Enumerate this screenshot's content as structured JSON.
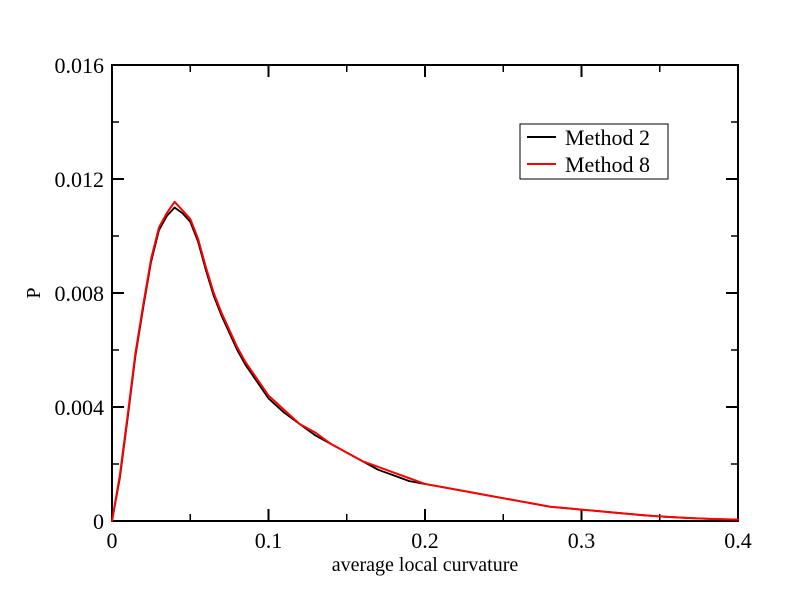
{
  "chart_data": {
    "type": "line",
    "title": "",
    "xlabel": "average local curvature",
    "ylabel": "P",
    "xlim": [
      0,
      0.4
    ],
    "ylim": [
      0,
      0.016
    ],
    "xticks": [
      0,
      0.1,
      0.2,
      0.3,
      0.4
    ],
    "xtick_labels": [
      "0",
      "0.1",
      "0.2",
      "0.3",
      "0.4"
    ],
    "yticks": [
      0,
      0.004,
      0.008,
      0.012,
      0.016
    ],
    "ytick_labels": [
      "0",
      "0.004",
      "0.008",
      "0.012",
      "0.016"
    ],
    "legend_position": "top-right",
    "grid": false,
    "series": [
      {
        "name": "Method 2",
        "color": "#000000",
        "x": [
          0.0,
          0.005,
          0.01,
          0.015,
          0.02,
          0.025,
          0.03,
          0.035,
          0.04,
          0.045,
          0.05,
          0.055,
          0.06,
          0.065,
          0.07,
          0.075,
          0.08,
          0.085,
          0.09,
          0.095,
          0.1,
          0.11,
          0.12,
          0.13,
          0.14,
          0.15,
          0.16,
          0.17,
          0.18,
          0.19,
          0.2,
          0.21,
          0.22,
          0.23,
          0.24,
          0.25,
          0.26,
          0.27,
          0.28,
          0.29,
          0.3,
          0.31,
          0.32,
          0.33,
          0.34,
          0.35,
          0.36,
          0.37,
          0.38,
          0.39,
          0.4
        ],
        "values": [
          0.0,
          0.0015,
          0.0036,
          0.0058,
          0.0075,
          0.0091,
          0.0102,
          0.0107,
          0.011,
          0.0108,
          0.0105,
          0.0098,
          0.0088,
          0.0079,
          0.0072,
          0.0066,
          0.006,
          0.0055,
          0.0051,
          0.0047,
          0.0043,
          0.0038,
          0.0034,
          0.003,
          0.0027,
          0.0024,
          0.0021,
          0.0018,
          0.0016,
          0.0014,
          0.0013,
          0.0012,
          0.0011,
          0.001,
          0.0009,
          0.0008,
          0.0007,
          0.0006,
          0.0005,
          0.00045,
          0.0004,
          0.00035,
          0.0003,
          0.00025,
          0.0002,
          0.00016,
          0.00013,
          0.0001,
          8e-05,
          6e-05,
          5e-05
        ]
      },
      {
        "name": "Method 8",
        "color": "#ff0000",
        "x": [
          0.0,
          0.005,
          0.01,
          0.015,
          0.02,
          0.025,
          0.03,
          0.035,
          0.04,
          0.045,
          0.05,
          0.055,
          0.06,
          0.065,
          0.07,
          0.075,
          0.08,
          0.085,
          0.09,
          0.095,
          0.1,
          0.11,
          0.12,
          0.13,
          0.14,
          0.15,
          0.16,
          0.17,
          0.18,
          0.19,
          0.2,
          0.21,
          0.22,
          0.23,
          0.24,
          0.25,
          0.26,
          0.27,
          0.28,
          0.29,
          0.3,
          0.31,
          0.32,
          0.33,
          0.34,
          0.35,
          0.36,
          0.37,
          0.38,
          0.39,
          0.4
        ],
        "values": [
          0.0,
          0.0016,
          0.0037,
          0.0059,
          0.0076,
          0.0092,
          0.0103,
          0.0108,
          0.0112,
          0.0109,
          0.0106,
          0.0099,
          0.0089,
          0.008,
          0.0073,
          0.0067,
          0.0061,
          0.0056,
          0.0052,
          0.0048,
          0.0044,
          0.0039,
          0.0034,
          0.0031,
          0.0027,
          0.0024,
          0.0021,
          0.0019,
          0.0017,
          0.0015,
          0.0013,
          0.0012,
          0.0011,
          0.001,
          0.0009,
          0.0008,
          0.0007,
          0.0006,
          0.0005,
          0.00045,
          0.0004,
          0.00035,
          0.0003,
          0.00025,
          0.0002,
          0.00016,
          0.00013,
          0.0001,
          8e-05,
          6e-05,
          5e-05
        ]
      }
    ]
  }
}
